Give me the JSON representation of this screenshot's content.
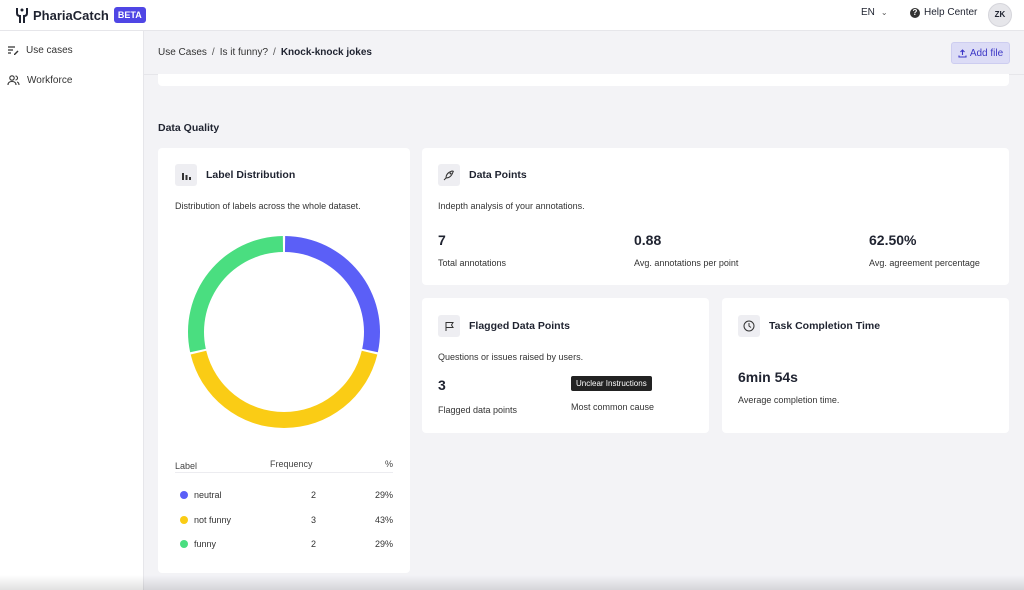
{
  "app": {
    "name": "PhariaCatch",
    "badge": "BETA"
  },
  "topbar": {
    "language": "EN",
    "help": "Help Center",
    "avatar": "ZK"
  },
  "sidebar": {
    "items": [
      {
        "label": "Use cases",
        "icon": "list-edit-icon"
      },
      {
        "label": "Workforce",
        "icon": "users-icon"
      }
    ]
  },
  "breadcrumb": {
    "items": [
      "Use Cases",
      "Is it funny?"
    ],
    "current": "Knock-knock jokes",
    "separator": "/"
  },
  "actions": {
    "add_file": "Add file"
  },
  "section": {
    "title": "Data Quality"
  },
  "label_distribution": {
    "title": "Label Distribution",
    "description": "Distribution of labels across the whole dataset.",
    "columns": [
      "Label",
      "Frequency",
      "%"
    ],
    "rows": [
      {
        "label": "neutral",
        "frequency": "2",
        "percent": "29%",
        "color": "#5b5ff7"
      },
      {
        "label": "not funny",
        "frequency": "3",
        "percent": "43%",
        "color": "#facc15"
      },
      {
        "label": "funny",
        "frequency": "2",
        "percent": "29%",
        "color": "#4ade80"
      }
    ]
  },
  "data_points": {
    "title": "Data Points",
    "description": "Indepth analysis of your annotations.",
    "stats": [
      {
        "value": "7",
        "label": "Total annotations"
      },
      {
        "value": "0.88",
        "label": "Avg. annotations per point"
      },
      {
        "value": "62.50%",
        "label": "Avg. agreement percentage"
      }
    ]
  },
  "flagged": {
    "title": "Flagged Data Points",
    "description": "Questions or issues raised by users.",
    "count": "3",
    "count_label": "Flagged data points",
    "cause_tag": "Unclear Instructions",
    "cause_label": "Most common cause"
  },
  "completion": {
    "title": "Task Completion Time",
    "value": "6min 54s",
    "label": "Average completion time."
  },
  "chart_data": {
    "type": "pie",
    "categories": [
      "neutral",
      "not funny",
      "funny"
    ],
    "values": [
      2,
      3,
      2
    ],
    "colors": [
      "#5b5ff7",
      "#facc15",
      "#4ade80"
    ]
  }
}
